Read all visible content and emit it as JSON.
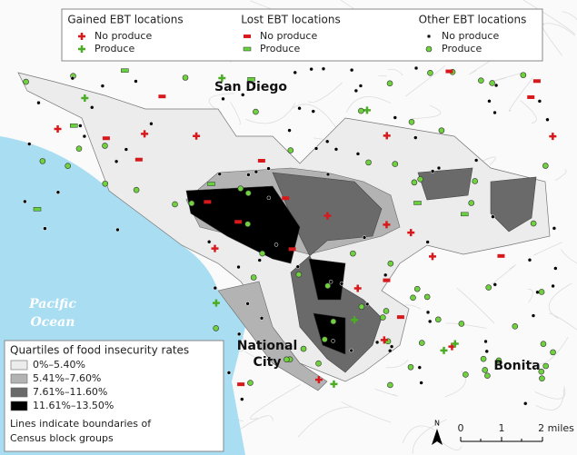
{
  "legend": {
    "groups": [
      {
        "title": "Gained EBT locations",
        "items": [
          "No produce",
          "Produce"
        ]
      },
      {
        "title": "Lost EBT locations",
        "items": [
          "No produce",
          "Produce"
        ]
      },
      {
        "title": "Other EBT locations",
        "items": [
          "No produce",
          "Produce"
        ]
      }
    ]
  },
  "places": {
    "san_diego": "San Diego",
    "ocean": [
      "Pacific",
      "Ocean"
    ],
    "national_city": [
      "National",
      "City"
    ],
    "bonita": "Bonita"
  },
  "quartiles": {
    "title": "Quartiles of food insecurity rates",
    "items": [
      "0%–5.40%",
      "5.41%–7.60%",
      "7.61%–11.60%",
      "11.61%–13.50%"
    ]
  },
  "note": [
    "Lines indicate boundaries of",
    "Census block groups"
  ],
  "scale": {
    "labels": [
      "0",
      "1",
      "2 miles"
    ]
  },
  "north": "N"
}
